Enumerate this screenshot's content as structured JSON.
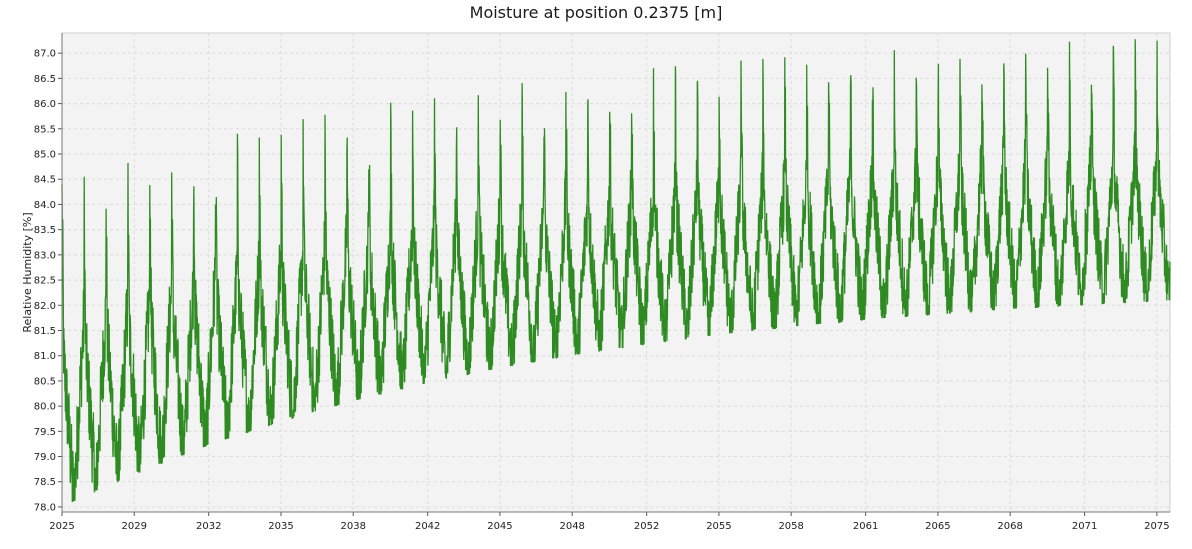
{
  "chart_data": {
    "type": "line",
    "title": "Moisture at position 0.2375 [m]",
    "xlabel": "",
    "ylabel": "Relative Humidity [%]",
    "xlim": [
      2025,
      2075.6
    ],
    "ylim": [
      77.9,
      87.4
    ],
    "x_ticks": [
      "2025",
      "2029",
      "2032",
      "2035",
      "2038",
      "2042",
      "2045",
      "2048",
      "2052",
      "2055",
      "2058",
      "2061",
      "2065",
      "2068",
      "2071",
      "2075"
    ],
    "x_tick_values": [
      2025.0,
      2028.3,
      2031.7,
      2035.0,
      2038.3,
      2041.7,
      2045.0,
      2048.3,
      2051.7,
      2055.0,
      2058.3,
      2061.7,
      2065.0,
      2068.3,
      2071.7,
      2075.0
    ],
    "y_ticks": [
      78.0,
      78.5,
      79.0,
      79.5,
      80.0,
      80.5,
      81.0,
      81.5,
      82.0,
      82.5,
      83.0,
      83.5,
      84.0,
      84.5,
      85.0,
      85.5,
      86.0,
      86.5,
      87.0
    ],
    "grid": true,
    "series": [
      {
        "name": "Relative Humidity",
        "color": "#2e8b22",
        "description": "Annual oscillation; yearly maxima rise from ~84.4 to ~87.3, yearly minima rise from ~78.0 to ~82.1",
        "start_year": 2025,
        "end_year": 2075.6,
        "peak_start": 84.4,
        "peak_end": 87.3,
        "trough_start": 78.0,
        "trough_end": 82.1
      }
    ]
  },
  "colors": {
    "plot_background": "#f3f3f3",
    "grid": "#dcdcdc",
    "series": "#2e8b22"
  }
}
